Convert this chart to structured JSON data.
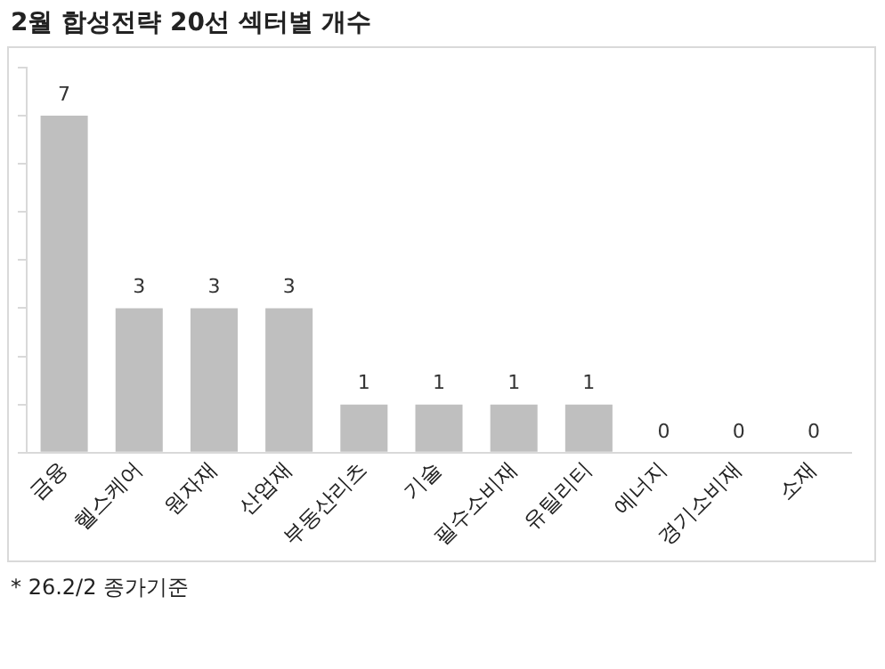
{
  "chart_data": {
    "type": "bar",
    "title": "2월 합성전략 20선 섹터별 개수",
    "categories": [
      "금융",
      "헬스케어",
      "원자재",
      "산업재",
      "부동산리츠",
      "기술",
      "필수소비재",
      "유틸리티",
      "에너지",
      "경기소비재",
      "소재"
    ],
    "values": [
      7,
      3,
      3,
      3,
      1,
      1,
      1,
      1,
      0,
      0,
      0
    ],
    "color": "#bfbfbf",
    "ylim": [
      0,
      8
    ],
    "yticks": [
      {
        "value": 0,
        "label": null
      },
      {
        "value": 1,
        "label": null
      },
      {
        "value": 2,
        "label": null
      },
      {
        "value": 3,
        "label": null
      },
      {
        "value": 4,
        "label": null
      },
      {
        "value": 5,
        "label": null
      },
      {
        "value": 6,
        "label": null
      },
      {
        "value": 7,
        "label": null
      },
      {
        "value": 8,
        "label": null
      }
    ],
    "tick_labels": "x",
    "grid": false,
    "legend": false,
    "data_labels": true,
    "annotations": [
      "* 26.2/2 종가기준"
    ]
  }
}
